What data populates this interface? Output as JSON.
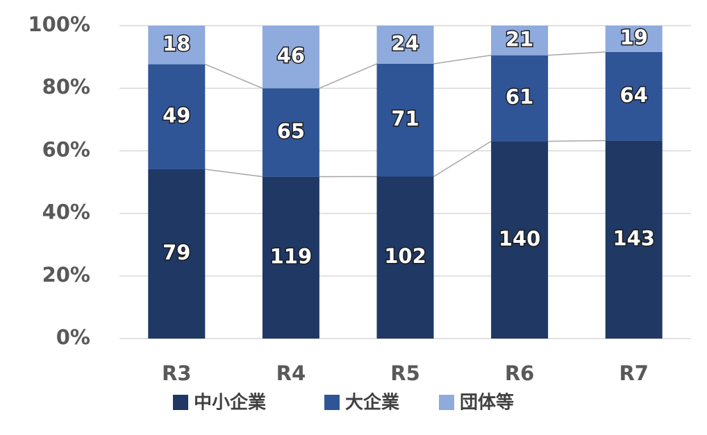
{
  "chart_data": {
    "type": "bar",
    "stacking": "percent",
    "categories": [
      "R3",
      "R4",
      "R5",
      "R6",
      "R7"
    ],
    "series": [
      {
        "name": "中小企業",
        "color": "#1f3864",
        "values": [
          79,
          119,
          102,
          140,
          143
        ]
      },
      {
        "name": "大企業",
        "color": "#2f5597",
        "values": [
          49,
          65,
          71,
          61,
          64
        ]
      },
      {
        "name": "団体等",
        "color": "#8faadc",
        "values": [
          18,
          46,
          24,
          21,
          19
        ]
      }
    ],
    "ylim": [
      0,
      100
    ],
    "yticks": [
      {
        "value": 0,
        "label": "0%"
      },
      {
        "value": 20,
        "label": "20%"
      },
      {
        "value": 40,
        "label": "40%"
      },
      {
        "value": 60,
        "label": "60%"
      },
      {
        "value": 80,
        "label": "80%"
      },
      {
        "value": 100,
        "label": "100%"
      }
    ],
    "grid": true,
    "legend": "bottom"
  }
}
